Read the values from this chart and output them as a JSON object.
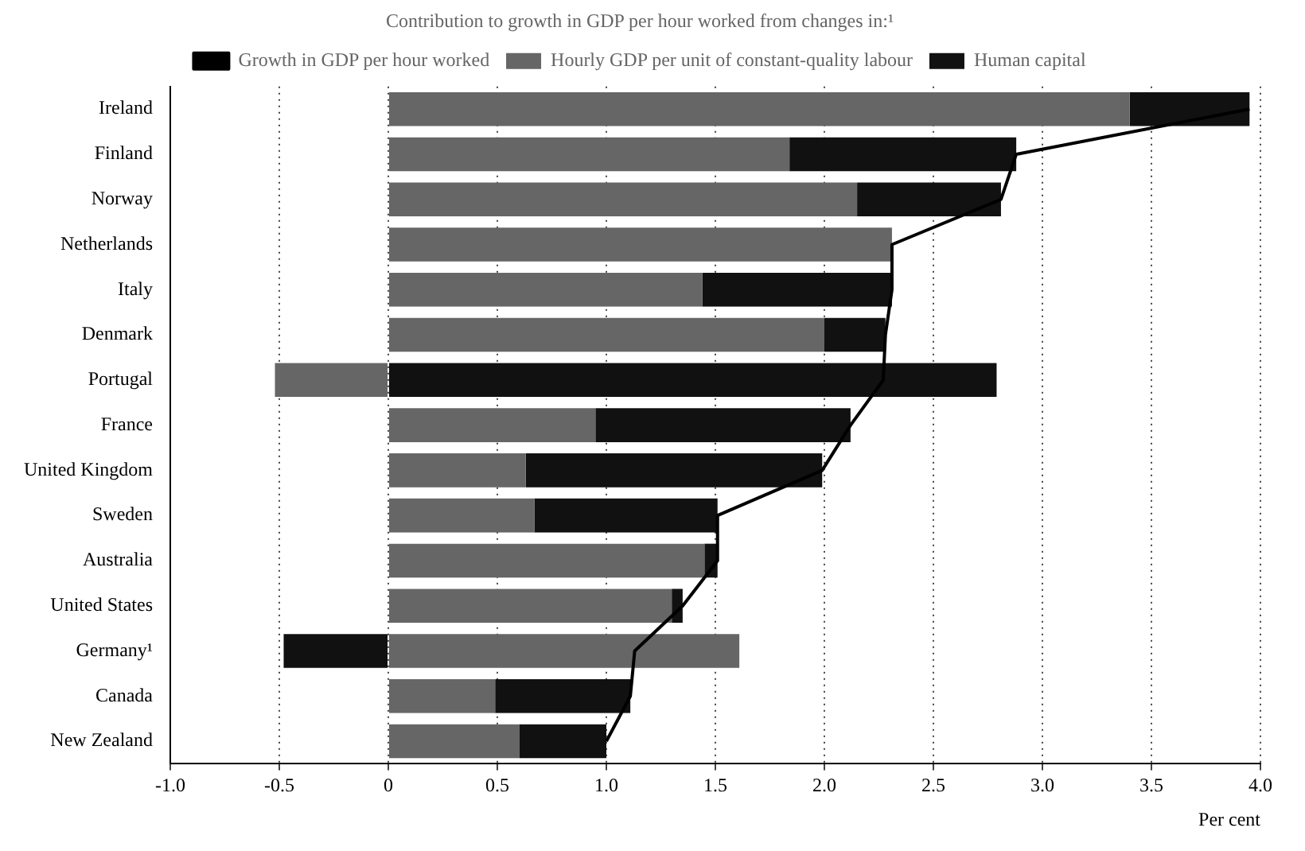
{
  "chart_data": {
    "type": "bar",
    "orientation": "horizontal",
    "stacked": true,
    "legend_title": "Contribution to growth in GDP per hour worked from changes in:¹",
    "xlabel": "Per cent",
    "categories": [
      "Ireland",
      "Finland",
      "Norway",
      "Netherlands",
      "Italy",
      "Denmark",
      "Portugal",
      "France",
      "United Kingdom",
      "Sweden",
      "Australia",
      "United States",
      "Germany¹",
      "Canada",
      "New Zealand"
    ],
    "series": [
      {
        "name": "Hourly GDP per unit of constant-quality labour",
        "color": "#666666",
        "values": [
          3.4,
          1.84,
          2.15,
          2.31,
          1.44,
          2.0,
          -0.52,
          0.95,
          0.63,
          0.67,
          1.45,
          1.3,
          1.61,
          0.49,
          0.6
        ]
      },
      {
        "name": "Human capital",
        "color": "#111111",
        "values": [
          0.55,
          1.04,
          0.66,
          0,
          0.87,
          0.28,
          2.79,
          1.17,
          1.36,
          0.84,
          0.06,
          0.05,
          -0.48,
          0.62,
          0.4
        ]
      },
      {
        "name": "Growth in GDP per hour worked",
        "type": "line",
        "color": "#000000",
        "values": [
          3.95,
          2.88,
          2.81,
          2.31,
          2.31,
          2.28,
          2.27,
          2.12,
          1.99,
          1.51,
          1.51,
          1.35,
          1.13,
          1.11,
          1.0
        ]
      }
    ],
    "xlim": [
      -1.0,
      4.0
    ],
    "xticks": [
      {
        "value": -1,
        "label": "-1.0"
      },
      {
        "value": -0.5,
        "label": "-0.5"
      },
      0,
      {
        "value": 0.5,
        "label": "0.5"
      },
      {
        "value": 1,
        "label": "1.0"
      },
      {
        "value": 1.5,
        "label": "1.5"
      },
      {
        "value": 2,
        "label": "2.0"
      },
      {
        "value": 2.5,
        "label": "2.5"
      },
      {
        "value": 3,
        "label": "3.0"
      },
      {
        "value": 3.5,
        "label": "3.5"
      },
      {
        "value": 4,
        "label": "4.0"
      }
    ],
    "grid": "x",
    "legend": "top",
    "marker": "none",
    "line_style": "solid"
  }
}
